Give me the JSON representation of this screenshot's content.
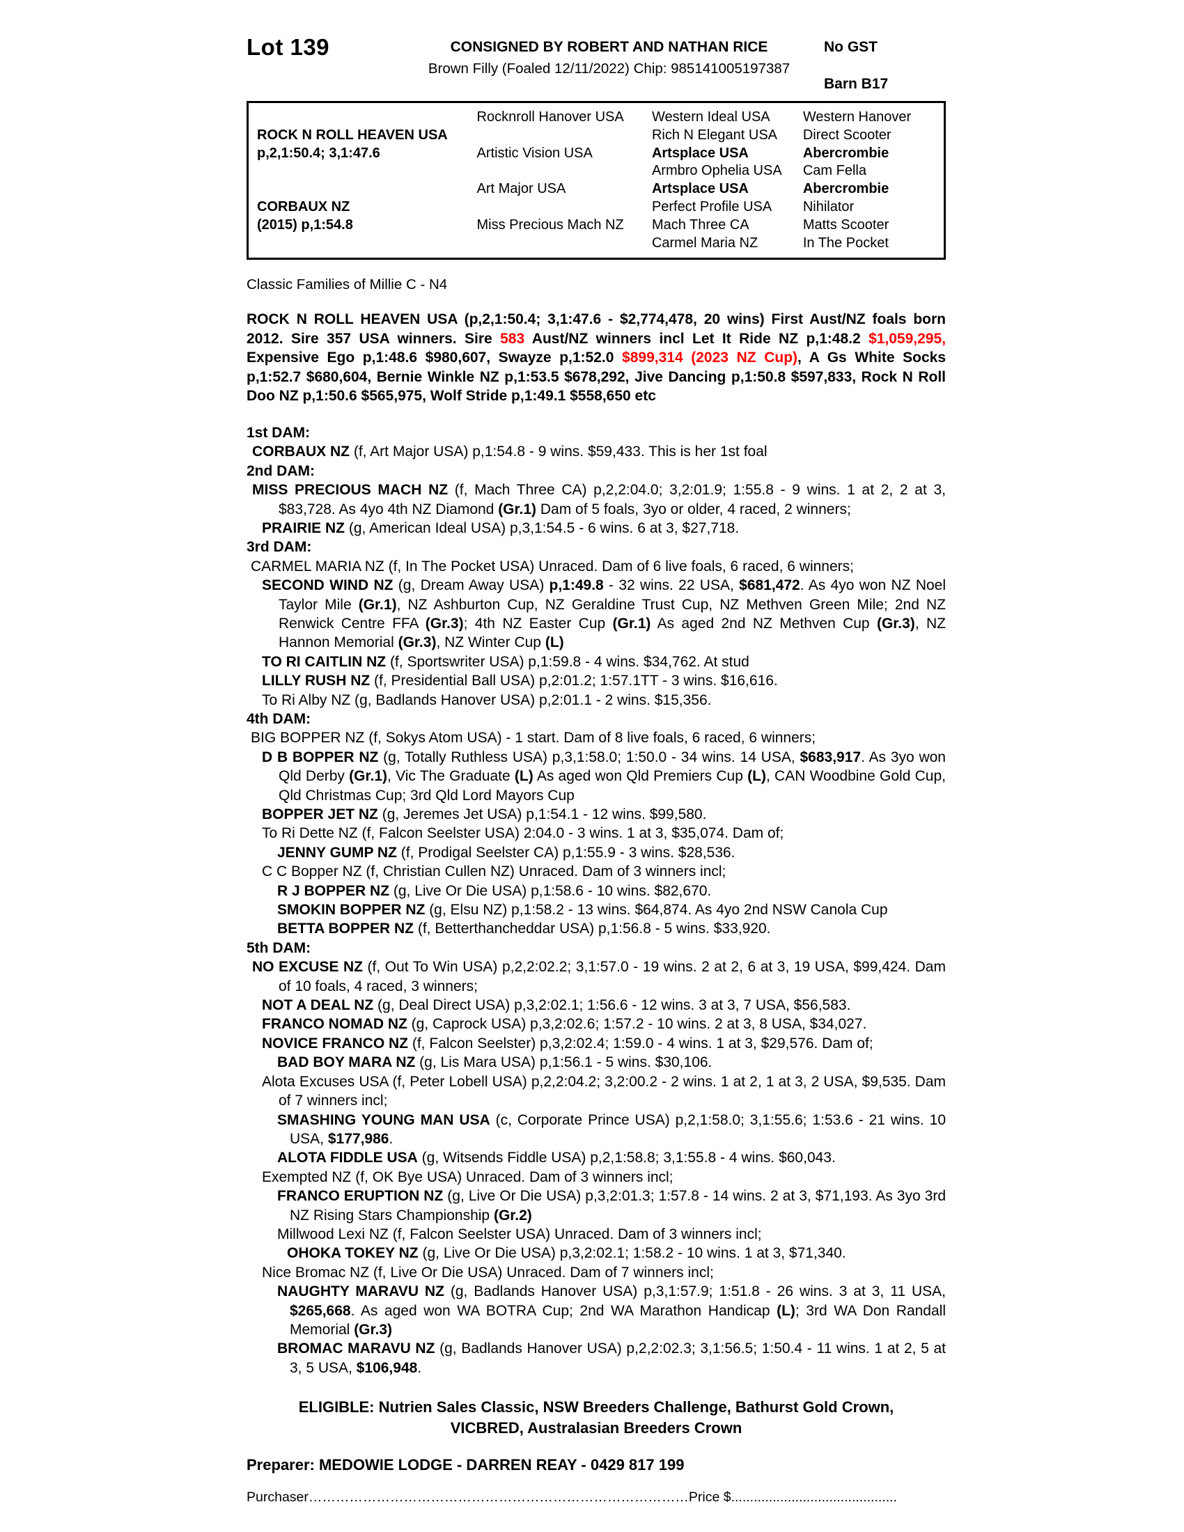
{
  "colors": {
    "accent_red": "#ff0000"
  },
  "header": {
    "lot": "Lot 139",
    "consigned": "CONSIGNED BY ROBERT AND NATHAN RICE",
    "no_gst": "No GST",
    "description": "Brown Filly (Foaled 12/11/2022) Chip: 985141005197387",
    "barn": "Barn B17"
  },
  "pedigree_table": {
    "rows": [
      [
        "",
        "Rocknroll Hanover USA",
        "Western Ideal USA",
        "Western Hanover"
      ],
      [
        {
          "t": "ROCK N ROLL HEAVEN USA",
          "b": true
        },
        "",
        "Rich N Elegant USA",
        "Direct Scooter"
      ],
      [
        {
          "t": "p,2,1:50.4; 3,1:47.6",
          "b": true
        },
        "Artistic Vision USA",
        {
          "t": "Artsplace USA",
          "b": true
        },
        {
          "t": "Abercrombie",
          "b": true
        }
      ],
      [
        "",
        "",
        "Armbro Ophelia USA",
        "Cam Fella"
      ],
      [
        "",
        "Art Major USA",
        {
          "t": "Artsplace USA",
          "b": true
        },
        {
          "t": "Abercrombie",
          "b": true
        }
      ],
      [
        {
          "t": "CORBAUX NZ",
          "b": true
        },
        "",
        "Perfect Profile USA",
        "Nihilator"
      ],
      [
        {
          "t": "(2015) p,1:54.8",
          "b": true
        },
        "Miss Precious Mach NZ",
        "Mach Three CA",
        "Matts Scooter"
      ],
      [
        "",
        "",
        "Carmel Maria NZ",
        "In The Pocket"
      ]
    ]
  },
  "family_line": "Classic Families of Millie C - N4",
  "sire_paragraph": {
    "segs": [
      "ROCK N ROLL HEAVEN USA (p,2,1:50.4; 3,1:47.6 - $2,774,478, 20 wins) First Aust/NZ foals born 2012. Sire 357 USA winners. Sire ",
      {
        "t": "583",
        "r": true
      },
      " Aust/NZ winners incl Let It Ride NZ p,1:48.2 ",
      {
        "t": "$1,059,295,",
        "r": true
      },
      " Expensive Ego p,1:48.6 $980,607, Swayze p,1:52.0 ",
      {
        "t": "$899,314 (2023 NZ Cup)",
        "r": true
      },
      ", A Gs White Socks p,1:52.7 $680,604, Bernie Winkle NZ p,1:53.5 $678,292, Jive Dancing p,1:50.8 $597,833, Rock N Roll Doo NZ p,1:50.6 $565,975, Wolf Stride p,1:49.1 $558,650 etc"
    ]
  },
  "dam_sections": [
    {
      "heading": "1st DAM:",
      "entries": [
        {
          "ind": 8,
          "wrap": 40,
          "segs": [
            {
              "t": "CORBAUX NZ",
              "b": true
            },
            " (f, Art Major USA) p,1:54.8 - 9 wins. $59,433. This is her 1st foal"
          ]
        }
      ]
    },
    {
      "heading": "2nd DAM:",
      "entries": [
        {
          "ind": 8,
          "wrap": 46,
          "segs": [
            {
              "t": "MISS PRECIOUS MACH NZ",
              "b": true
            },
            " (f, Mach Three CA) p,2,2:04.0; 3,2:01.9; 1:55.8 - 9 wins. 1 at 2, 2 at 3, $83,728. As 4yo 4th NZ Diamond ",
            {
              "t": "(Gr.1)",
              "b": true
            },
            " Dam of 5 foals, 3yo or older, 4 raced, 2 winners;"
          ]
        },
        {
          "ind": 22,
          "wrap": 46,
          "segs": [
            {
              "t": "PRAIRIE NZ",
              "b": true
            },
            " (g, American Ideal USA) p,3,1:54.5 - 6 wins. 6 at 3, $27,718."
          ]
        }
      ]
    },
    {
      "heading": "3rd DAM:",
      "entries": [
        {
          "ind": 6,
          "wrap": 30,
          "segs": [
            "CARMEL MARIA NZ (f, In The Pocket USA) Unraced. Dam of 6 live foals, 6 raced, 6 winners;"
          ]
        },
        {
          "ind": 22,
          "wrap": 46,
          "segs": [
            {
              "t": "SECOND WIND NZ",
              "b": true
            },
            " (g, Dream Away USA) ",
            {
              "t": "p,1:49.8",
              "b": true
            },
            " - 32 wins. 22 USA, ",
            {
              "t": "$681,472",
              "b": true
            },
            ". As 4yo won NZ Noel Taylor Mile ",
            {
              "t": "(Gr.1)",
              "b": true
            },
            ", NZ Ashburton Cup, NZ Geraldine Trust Cup, NZ Methven Green Mile; 2nd NZ Renwick Centre FFA ",
            {
              "t": "(Gr.3)",
              "b": true
            },
            "; 4th NZ Easter Cup ",
            {
              "t": "(Gr.1)",
              "b": true
            },
            " As aged 2nd NZ Methven Cup ",
            {
              "t": "(Gr.3)",
              "b": true
            },
            ", NZ Hannon Memorial ",
            {
              "t": "(Gr.3)",
              "b": true
            },
            ", NZ Winter Cup ",
            {
              "t": "(L)",
              "b": true
            }
          ]
        },
        {
          "ind": 22,
          "wrap": 46,
          "segs": [
            {
              "t": "TO RI CAITLIN NZ",
              "b": true
            },
            " (f, Sportswriter USA) p,1:59.8 - 4 wins. $34,762. At stud"
          ]
        },
        {
          "ind": 22,
          "wrap": 46,
          "segs": [
            {
              "t": "LILLY RUSH NZ",
              "b": true
            },
            " (f, Presidential Ball USA) p,2:01.2; 1:57.1TT - 3 wins. $16,616."
          ]
        },
        {
          "ind": 22,
          "wrap": 46,
          "segs": [
            "To Ri Alby NZ (g, Badlands Hanover USA) p,2:01.1 - 2 wins. $15,356."
          ]
        }
      ]
    },
    {
      "heading": "4th DAM:",
      "entries": [
        {
          "ind": 6,
          "wrap": 30,
          "segs": [
            "BIG BOPPER NZ (f, Sokys Atom USA) - 1 start. Dam of 8 live foals, 6 raced, 6 winners;"
          ]
        },
        {
          "ind": 22,
          "wrap": 46,
          "segs": [
            {
              "t": "D B BOPPER NZ",
              "b": true
            },
            " (g, Totally Ruthless USA) p,3,1:58.0; 1:50.0 - 34 wins. 14 USA, ",
            {
              "t": "$683,917",
              "b": true
            },
            ". As 3yo won Qld Derby ",
            {
              "t": "(Gr.1)",
              "b": true
            },
            ", Vic The Graduate ",
            {
              "t": "(L)",
              "b": true
            },
            " As aged won Qld Premiers Cup ",
            {
              "t": "(L)",
              "b": true
            },
            ", CAN Woodbine Gold Cup, Qld Christmas Cup; 3rd Qld Lord Mayors Cup"
          ]
        },
        {
          "ind": 22,
          "wrap": 46,
          "segs": [
            {
              "t": "BOPPER JET NZ",
              "b": true
            },
            " (g, Jeremes Jet USA) p,1:54.1 - 12 wins. $99,580."
          ]
        },
        {
          "ind": 22,
          "wrap": 46,
          "segs": [
            "To Ri Dette NZ (f, Falcon Seelster USA) 2:04.0 - 3 wins. 1 at 3, $35,074. Dam of;"
          ]
        },
        {
          "ind": 44,
          "wrap": 62,
          "segs": [
            {
              "t": "JENNY GUMP NZ",
              "b": true
            },
            " (f, Prodigal Seelster CA) p,1:55.9 - 3 wins. $28,536."
          ]
        },
        {
          "ind": 22,
          "wrap": 46,
          "segs": [
            "C C Bopper NZ (f, Christian Cullen NZ) Unraced. Dam of 3 winners incl;"
          ]
        },
        {
          "ind": 44,
          "wrap": 62,
          "segs": [
            {
              "t": "R J BOPPER NZ",
              "b": true
            },
            " (g, Live Or Die USA) p,1:58.6 - 10 wins. $82,670."
          ]
        },
        {
          "ind": 44,
          "wrap": 62,
          "segs": [
            {
              "t": "SMOKIN BOPPER NZ",
              "b": true
            },
            " (g, Elsu NZ) p,1:58.2 - 13 wins. $64,874. As 4yo 2nd NSW Canola Cup"
          ]
        },
        {
          "ind": 44,
          "wrap": 62,
          "segs": [
            {
              "t": "BETTA BOPPER NZ",
              "b": true
            },
            " (f, Betterthancheddar USA) p,1:56.8 - 5 wins. $33,920."
          ]
        }
      ]
    },
    {
      "heading": "5th DAM:",
      "entries": [
        {
          "ind": 8,
          "wrap": 46,
          "segs": [
            {
              "t": "NO EXCUSE NZ",
              "b": true
            },
            " (f, Out To Win USA) p,2,2:02.2; 3,1:57.0 - 19 wins. 2 at 2, 6 at 3, 19 USA, $99,424. Dam of 10 foals, 4 raced, 3 winners;"
          ]
        },
        {
          "ind": 22,
          "wrap": 46,
          "segs": [
            {
              "t": "NOT A DEAL NZ",
              "b": true
            },
            " (g, Deal Direct USA) p,3,2:02.1; 1:56.6 - 12 wins. 3 at 3, 7 USA, $56,583."
          ]
        },
        {
          "ind": 22,
          "wrap": 46,
          "segs": [
            {
              "t": "FRANCO NOMAD NZ",
              "b": true
            },
            " (g, Caprock USA) p,3,2:02.6; 1:57.2 - 10 wins. 2 at 3, 8 USA, $34,027."
          ]
        },
        {
          "ind": 22,
          "wrap": 46,
          "segs": [
            {
              "t": "NOVICE FRANCO NZ",
              "b": true
            },
            " (f, Falcon Seelster) p,3,2:02.4; 1:59.0 - 4 wins. 1 at 3, $29,576. Dam of;"
          ]
        },
        {
          "ind": 44,
          "wrap": 62,
          "segs": [
            {
              "t": "BAD BOY MARA NZ",
              "b": true
            },
            " (g, Lis Mara USA) p,1:56.1 - 5 wins. $30,106."
          ]
        },
        {
          "ind": 22,
          "wrap": 46,
          "segs": [
            "Alota Excuses USA (f, Peter Lobell USA) p,2,2:04.2; 3,2:00.2 - 2 wins. 1 at 2, 1 at 3, 2 USA, $9,535. Dam of 7 winners incl;"
          ]
        },
        {
          "ind": 44,
          "wrap": 62,
          "segs": [
            {
              "t": "SMASHING YOUNG MAN USA",
              "b": true
            },
            " (c, Corporate Prince USA) p,2,1:58.0; 3,1:55.6; 1:53.6 - 21 wins. 10 USA, ",
            {
              "t": "$177,986",
              "b": true
            },
            "."
          ]
        },
        {
          "ind": 44,
          "wrap": 62,
          "segs": [
            {
              "t": "ALOTA FIDDLE USA",
              "b": true
            },
            " (g, Witsends Fiddle USA) p,2,1:58.8; 3,1:55.8 - 4 wins. $60,043."
          ]
        },
        {
          "ind": 22,
          "wrap": 46,
          "segs": [
            "Exempted NZ (f, OK Bye USA) Unraced. Dam of 3 winners incl;"
          ]
        },
        {
          "ind": 44,
          "wrap": 62,
          "segs": [
            {
              "t": "FRANCO ERUPTION NZ",
              "b": true
            },
            " (g, Live Or Die USA) p,3,2:01.3; 1:57.8 - 14 wins. 2 at 3, $71,193. As 3yo 3rd NZ Rising Stars Championship ",
            {
              "t": "(Gr.2)",
              "b": true
            }
          ]
        },
        {
          "ind": 44,
          "wrap": 62,
          "segs": [
            "Millwood Lexi NZ (f, Falcon Seelster USA) Unraced. Dam of 3 winners incl;"
          ]
        },
        {
          "ind": 58,
          "wrap": 76,
          "segs": [
            {
              "t": "OHOKA TOKEY NZ",
              "b": true
            },
            " (g, Live Or Die USA) p,3,2:02.1; 1:58.2 - 10 wins. 1 at 3, $71,340."
          ]
        },
        {
          "ind": 22,
          "wrap": 46,
          "segs": [
            "Nice Bromac NZ (f, Live Or Die USA) Unraced. Dam of 7 winners incl;"
          ]
        },
        {
          "ind": 44,
          "wrap": 62,
          "segs": [
            {
              "t": "NAUGHTY MARAVU NZ",
              "b": true
            },
            " (g, Badlands Hanover USA) p,3,1:57.9; 1:51.8 - 26 wins. 3 at 3, 11 USA, ",
            {
              "t": "$265,668",
              "b": true
            },
            ". As aged won WA BOTRA Cup; 2nd WA Marathon Handicap ",
            {
              "t": "(L)",
              "b": true
            },
            "; 3rd WA Don Randall Memorial ",
            {
              "t": "(Gr.3)",
              "b": true
            }
          ]
        },
        {
          "ind": 44,
          "wrap": 62,
          "segs": [
            {
              "t": "BROMAC MARAVU NZ",
              "b": true
            },
            " (g, Badlands Hanover USA) p,2,2:02.3; 3,1:56.5; 1:50.4 - 11 wins. 1 at 2, 5 at 3, 5 USA, ",
            {
              "t": "$106,948",
              "b": true
            },
            "."
          ]
        }
      ]
    }
  ],
  "eligible": {
    "line1": "ELIGIBLE: Nutrien Sales Classic, NSW Breeders Challenge, Bathurst Gold Crown,",
    "line2": "VICBRED, Australasian Breeders Crown"
  },
  "preparer": "Preparer: MEDOWIE LODGE - DARREN REAY - 0429 817 199",
  "purchaser_line": {
    "label": "Purchaser",
    "dots1": "…………………………………………………………………………",
    "price": "Price $",
    "dots2": "............................................"
  }
}
